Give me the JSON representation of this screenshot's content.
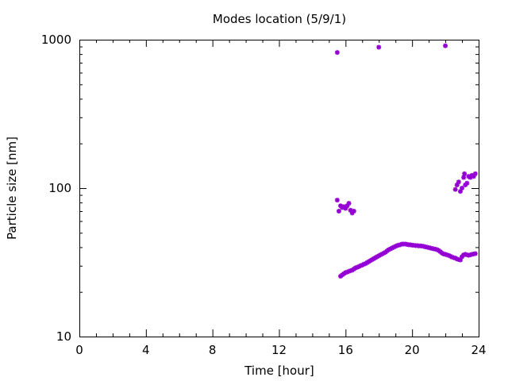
{
  "chart_data": {
    "type": "scatter",
    "title": "Modes location (5/9/1)",
    "xlabel": "Time [hour]",
    "ylabel": "Particle size [nm]",
    "xlim": [
      0,
      24
    ],
    "ylim": [
      10,
      1000
    ],
    "y_scale": "log",
    "x_ticks": [
      0,
      4,
      8,
      12,
      16,
      20,
      24
    ],
    "y_ticks": [
      10,
      100,
      1000
    ],
    "grid": false,
    "legend": "none",
    "marker_color": "#9400d3",
    "points": [
      [
        15.5,
        820
      ],
      [
        18.0,
        890
      ],
      [
        22.0,
        910
      ],
      [
        15.5,
        83
      ],
      [
        15.6,
        70
      ],
      [
        15.7,
        76
      ],
      [
        15.8,
        74
      ],
      [
        15.9,
        75
      ],
      [
        16.0,
        73
      ],
      [
        16.1,
        76
      ],
      [
        16.2,
        79
      ],
      [
        16.3,
        71
      ],
      [
        16.4,
        68
      ],
      [
        16.5,
        70
      ],
      [
        22.6,
        98
      ],
      [
        22.7,
        105
      ],
      [
        22.8,
        110
      ],
      [
        22.9,
        95
      ],
      [
        23.0,
        100
      ],
      [
        23.1,
        118
      ],
      [
        23.15,
        125
      ],
      [
        23.2,
        105
      ],
      [
        23.3,
        108
      ],
      [
        23.4,
        120
      ],
      [
        23.5,
        118
      ],
      [
        23.6,
        122
      ],
      [
        23.7,
        120
      ],
      [
        23.8,
        125
      ],
      [
        15.7,
        25.5
      ],
      [
        15.8,
        26
      ],
      [
        15.9,
        26.5
      ],
      [
        16.0,
        27
      ],
      [
        16.1,
        27.2
      ],
      [
        16.2,
        27.5
      ],
      [
        16.3,
        27.8
      ],
      [
        16.4,
        28
      ],
      [
        16.5,
        28.5
      ],
      [
        16.6,
        29
      ],
      [
        16.7,
        29.3
      ],
      [
        16.8,
        29.6
      ],
      [
        16.9,
        30
      ],
      [
        17.0,
        30.3
      ],
      [
        17.1,
        30.7
      ],
      [
        17.2,
        31
      ],
      [
        17.3,
        31.5
      ],
      [
        17.4,
        32
      ],
      [
        17.5,
        32.5
      ],
      [
        17.6,
        33
      ],
      [
        17.7,
        33.5
      ],
      [
        17.8,
        34
      ],
      [
        17.9,
        34.5
      ],
      [
        18.0,
        35
      ],
      [
        18.1,
        35.5
      ],
      [
        18.2,
        36
      ],
      [
        18.3,
        36.5
      ],
      [
        18.4,
        37
      ],
      [
        18.5,
        37.8
      ],
      [
        18.6,
        38.5
      ],
      [
        18.7,
        39
      ],
      [
        18.8,
        39.5
      ],
      [
        18.9,
        40
      ],
      [
        19.0,
        40.5
      ],
      [
        19.1,
        41
      ],
      [
        19.2,
        41.3
      ],
      [
        19.3,
        41.6
      ],
      [
        19.4,
        42
      ],
      [
        19.5,
        42
      ],
      [
        19.6,
        42
      ],
      [
        19.7,
        41.8
      ],
      [
        19.8,
        41.5
      ],
      [
        19.9,
        41.5
      ],
      [
        20.0,
        41.3
      ],
      [
        20.1,
        41.2
      ],
      [
        20.2,
        41
      ],
      [
        20.3,
        41
      ],
      [
        20.4,
        40.8
      ],
      [
        20.5,
        40.8
      ],
      [
        20.6,
        40.7
      ],
      [
        20.7,
        40.5
      ],
      [
        20.8,
        40.2
      ],
      [
        20.9,
        40
      ],
      [
        21.0,
        39.7
      ],
      [
        21.1,
        39.5
      ],
      [
        21.2,
        39.2
      ],
      [
        21.3,
        39
      ],
      [
        21.4,
        38.8
      ],
      [
        21.5,
        38.5
      ],
      [
        21.6,
        38
      ],
      [
        21.7,
        37.3
      ],
      [
        21.8,
        36.5
      ],
      [
        21.9,
        36
      ],
      [
        22.0,
        35.8
      ],
      [
        22.1,
        35.5
      ],
      [
        22.2,
        35.2
      ],
      [
        22.3,
        34.8
      ],
      [
        22.4,
        34.3
      ],
      [
        22.5,
        34
      ],
      [
        22.6,
        33.8
      ],
      [
        22.7,
        33.3
      ],
      [
        22.8,
        33
      ],
      [
        22.9,
        32.8
      ],
      [
        23.0,
        34.5
      ],
      [
        23.1,
        35.5
      ],
      [
        23.2,
        35.8
      ],
      [
        23.3,
        35.5
      ],
      [
        23.4,
        35.3
      ],
      [
        23.5,
        35.5
      ],
      [
        23.6,
        35.8
      ],
      [
        23.7,
        36
      ],
      [
        23.8,
        36.2
      ]
    ]
  }
}
